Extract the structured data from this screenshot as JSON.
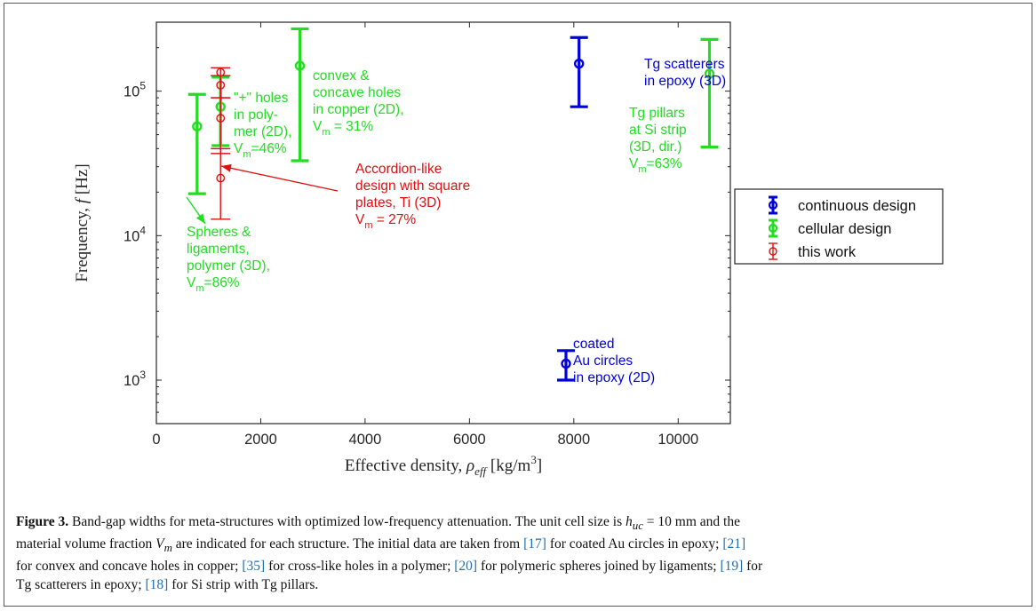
{
  "chart_data": {
    "type": "scatter",
    "x_scale": "linear",
    "y_scale": "log",
    "xlim": [
      0,
      11000
    ],
    "ylim": [
      500,
      300000
    ],
    "xticks": [
      0,
      2000,
      4000,
      6000,
      8000,
      10000
    ],
    "xtick_labels": [
      "0",
      "2000",
      "4000",
      "6000",
      "8000",
      "10000"
    ],
    "yticks": [
      1000,
      10000,
      100000
    ],
    "ytick_labels": [
      {
        "base": "10",
        "exp": "3"
      },
      {
        "base": "10",
        "exp": "4"
      },
      {
        "base": "10",
        "exp": "5"
      }
    ],
    "xlabel": {
      "text": "Effective density, ",
      "symbol": "ρ",
      "sub": "eff",
      "units": "[kg/m",
      "sup": "3",
      "close": "]"
    },
    "ylabel": {
      "text": "Frequency, ",
      "symbol": "f",
      "units": "[Hz]"
    },
    "grid": false,
    "legend_position": "right",
    "series": [
      {
        "name": "continuous design",
        "color": "#0000dd",
        "points": [
          {
            "x": 8100,
            "y": 155000,
            "low": 78000,
            "high": 235000
          },
          {
            "x": 7850,
            "y": 1300,
            "low": 1000,
            "high": 1600
          }
        ]
      },
      {
        "name": "cellular design",
        "color": "#22dd22",
        "points": [
          {
            "x": 780,
            "y": 57000,
            "low": 19500,
            "high": 95000
          },
          {
            "x": 1230,
            "y": 78000,
            "low": 42000,
            "high": 125000
          },
          {
            "x": 2750,
            "y": 150000,
            "low": 33000,
            "high": 270000
          },
          {
            "x": 10600,
            "y": 132000,
            "low": 41000,
            "high": 228000
          }
        ]
      },
      {
        "name": "this work",
        "color": "#dd1111",
        "points": [
          {
            "x": 1230,
            "y": 135000,
            "low": 90000,
            "high": 145000
          },
          {
            "x": 1230,
            "y": 110000,
            "low": 90000,
            "high": 128000
          },
          {
            "x": 1230,
            "y": 65000,
            "low": 37000,
            "high": 128000
          },
          {
            "x": 1230,
            "y": 25000,
            "low": 13000,
            "high": 40000
          }
        ]
      }
    ],
    "annotations": [
      {
        "color": "#22dd22",
        "lines": [
          "\"+\" holes",
          "in poly-",
          "mer (2D),"
        ],
        "vm": "=46%"
      },
      {
        "color": "#22dd22",
        "lines": [
          "convex &",
          "concave holes",
          "in copper (2D),"
        ],
        "vm": " = 31%"
      },
      {
        "color": "#0000dd",
        "lines": [
          "Tg scatterers",
          "in epoxy (3D)"
        ],
        "vm": ""
      },
      {
        "color": "#22dd22",
        "lines": [
          "Tg pillars",
          "at Si strip",
          "(3D, dir.)"
        ],
        "vm": "=63%"
      },
      {
        "color": "#dd1111",
        "lines": [
          "Accordion-like",
          "design with square",
          "plates, Ti (3D)"
        ],
        "vm": " = 27%"
      },
      {
        "color": "#22dd22",
        "lines": [
          "Spheres &",
          "ligaments,",
          "polymer (3D),"
        ],
        "vm": "=86%"
      },
      {
        "color": "#0000dd",
        "lines": [
          "coated",
          "Au circles",
          "in epoxy (2D)"
        ],
        "vm": ""
      }
    ],
    "vm_prefix": "V",
    "vm_sub": "m"
  },
  "caption": {
    "label": "Figure 3.",
    "s1": " Band-gap widths for meta-structures with optimized low-frequency attenuation. The unit cell size is ",
    "h": "h",
    "h_sub": "uc",
    "eq": " = 10 mm and the",
    "s2": "material volume fraction ",
    "v": "V",
    "v_sub": "m",
    "s3": " are indicated for each structure. The initial data are taken from ",
    "r17": "[17]",
    "s4": " for coated Au circles in epoxy; ",
    "r21": "[21]",
    "s5": "for convex and concave holes in copper; ",
    "r35": "[35]",
    "s6": " for cross-like holes in a polymer; ",
    "r20": "[20]",
    "s7": " for polymeric spheres joined by ligaments; ",
    "r19": "[19]",
    "s8": " for",
    "s9": "Tg scatterers in epoxy; ",
    "r18": "[18]",
    "s10": " for Si strip with Tg pillars."
  }
}
